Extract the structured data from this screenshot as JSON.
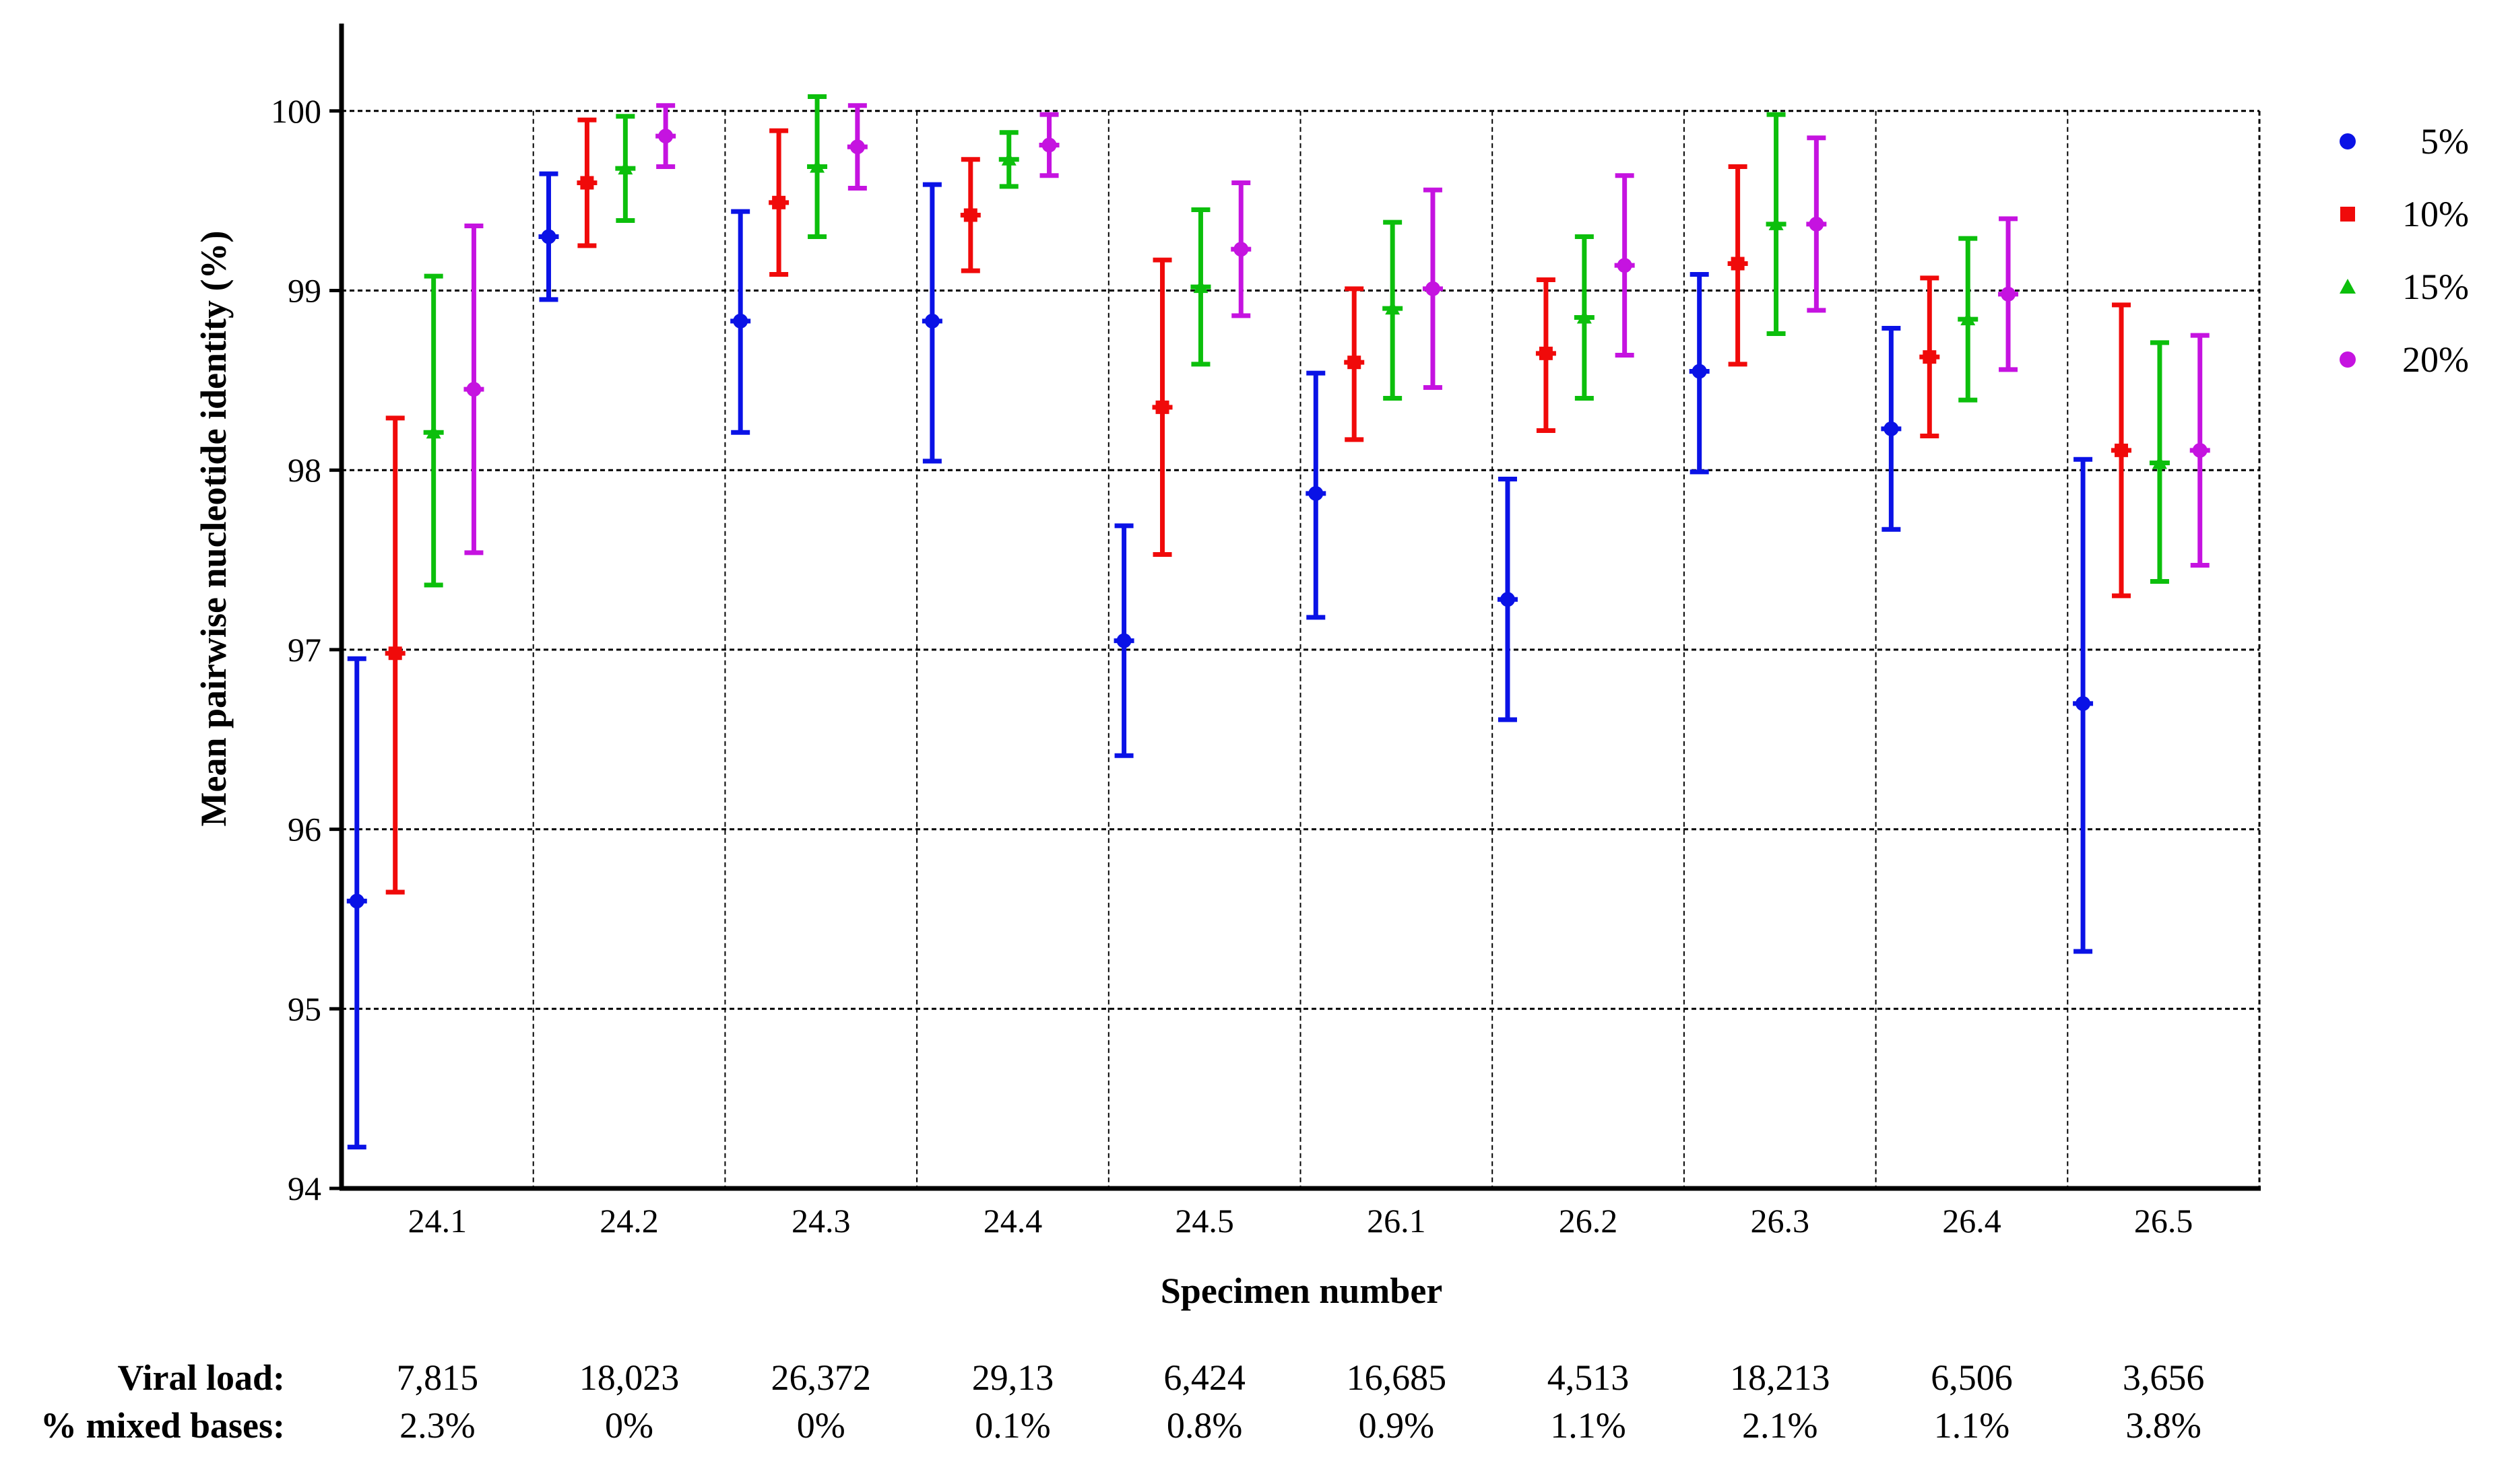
{
  "chart_data": {
    "type": "scatter",
    "subtype": "mean-with-error-bars",
    "title": "",
    "xlabel": "Specimen number",
    "ylabel": "Mean pairwise nucleotide identity (%)",
    "ylim": [
      94,
      100.5
    ],
    "yticks": [
      94,
      95,
      96,
      97,
      98,
      99,
      100
    ],
    "grid": true,
    "legend_position": "right",
    "categories": [
      "24.1",
      "24.2",
      "24.3",
      "24.4",
      "24.5",
      "26.1",
      "26.2",
      "26.3",
      "26.4",
      "26.5"
    ],
    "series": [
      {
        "name": "5%",
        "color": "#0a12e6",
        "marker": "circle",
        "mean": [
          95.6,
          99.3,
          98.83,
          98.83,
          97.05,
          97.87,
          97.28,
          98.55,
          98.23,
          96.7
        ],
        "lower": [
          94.23,
          98.95,
          98.21,
          98.05,
          96.41,
          97.18,
          96.61,
          97.99,
          97.67,
          95.32
        ],
        "upper": [
          96.95,
          99.65,
          99.44,
          99.59,
          97.69,
          98.54,
          97.95,
          99.09,
          98.79,
          98.06
        ]
      },
      {
        "name": "10%",
        "color": "#f00a0a",
        "marker": "square",
        "mean": [
          96.98,
          99.6,
          99.49,
          99.42,
          98.35,
          98.6,
          98.65,
          99.15,
          98.63,
          98.11
        ],
        "lower": [
          95.65,
          99.25,
          99.09,
          99.11,
          97.53,
          98.17,
          98.22,
          98.59,
          98.19,
          97.3
        ],
        "upper": [
          98.29,
          99.95,
          99.89,
          99.73,
          99.17,
          99.01,
          99.06,
          99.69,
          99.07,
          98.92
        ]
      },
      {
        "name": "15%",
        "color": "#0cbf0c",
        "marker": "triangle",
        "mean": [
          98.21,
          99.68,
          99.69,
          99.73,
          99.02,
          98.9,
          98.85,
          99.37,
          98.84,
          98.04
        ],
        "lower": [
          97.36,
          99.39,
          99.3,
          99.58,
          98.59,
          98.4,
          98.4,
          98.76,
          98.39,
          97.38
        ],
        "upper": [
          99.08,
          99.97,
          100.08,
          99.88,
          99.45,
          99.38,
          99.3,
          99.98,
          99.29,
          98.71
        ]
      },
      {
        "name": "20%",
        "color": "#c513e0",
        "marker": "circle",
        "mean": [
          98.45,
          99.86,
          99.8,
          99.81,
          99.23,
          99.01,
          99.14,
          99.37,
          98.98,
          98.11
        ],
        "lower": [
          97.54,
          99.69,
          99.57,
          99.64,
          98.86,
          98.46,
          98.64,
          98.89,
          98.56,
          97.47
        ],
        "upper": [
          99.36,
          100.03,
          100.03,
          99.98,
          99.6,
          99.56,
          99.64,
          99.85,
          99.4,
          98.75
        ]
      }
    ],
    "table": {
      "viral_load_label": "Viral load:",
      "mixed_bases_label": "% mixed bases:",
      "viral_load": [
        "7,815",
        "18,023",
        "26,372",
        "29,13",
        "6,424",
        "16,685",
        "4,513",
        "18,213",
        "6,506",
        "3,656"
      ],
      "mixed_bases": [
        "2.3%",
        "0%",
        "0%",
        "0.1%",
        "0.8%",
        "0.9%",
        "1.1%",
        "2.1%",
        "1.1%",
        "3.8%"
      ]
    }
  }
}
